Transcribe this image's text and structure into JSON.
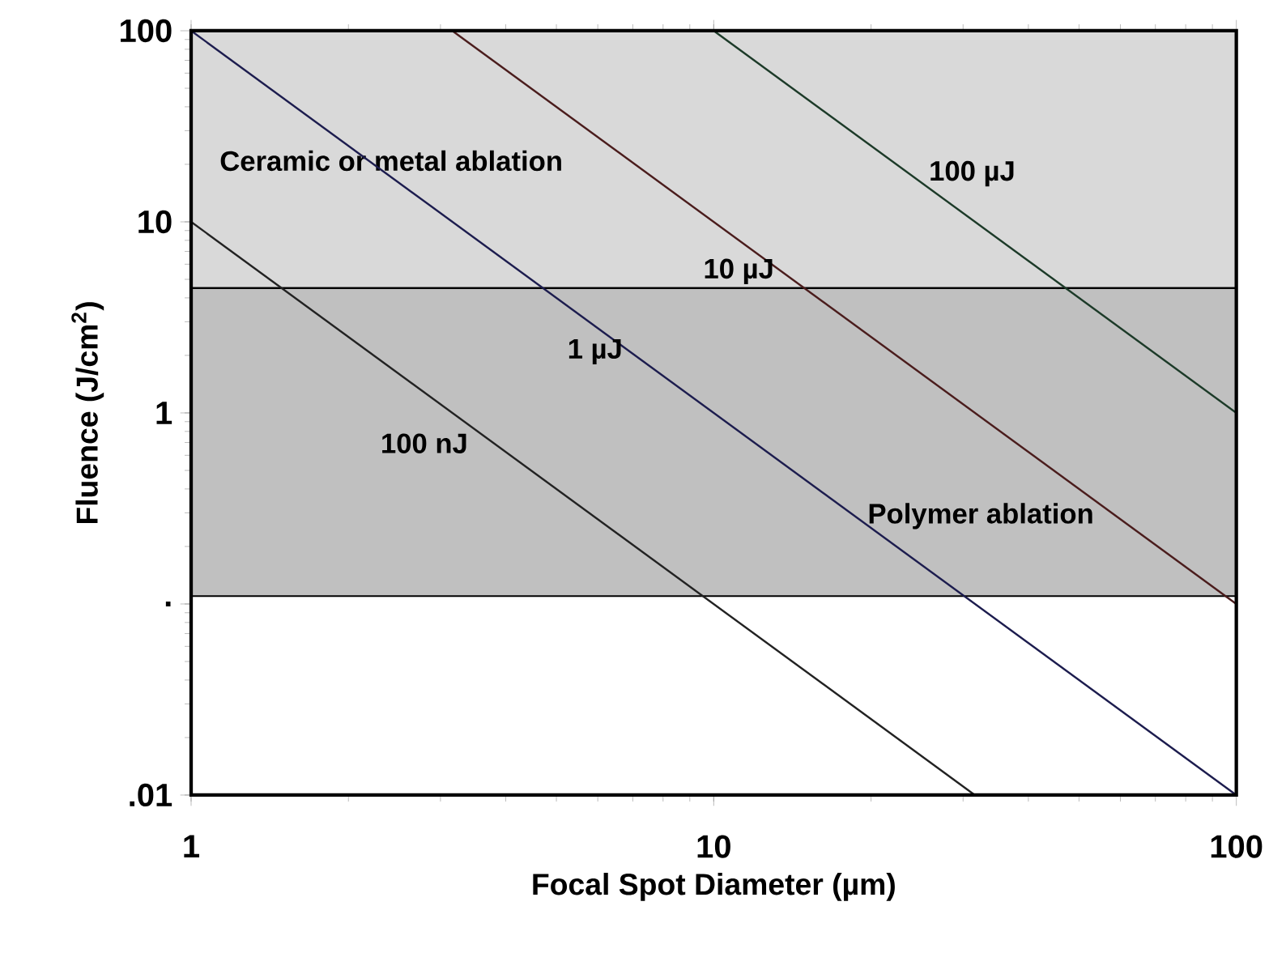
{
  "chart_data": {
    "type": "line",
    "xlabel": "Focal Spot Diameter (µm)",
    "ylabel": "Fluence (J/cm$^{2}$)",
    "log": "xy",
    "xlim": [
      1,
      100
    ],
    "ylim": [
      0.01,
      100
    ],
    "xticks": [
      1,
      10,
      100
    ],
    "yticks": [
      {
        "value": 0.01,
        "label": ".01"
      },
      {
        "value": 0.1,
        "label": "."
      },
      1,
      10,
      100
    ],
    "bands": [
      {
        "axis": "y",
        "from": 4.5,
        "to": 100,
        "label": "Ceramic or metal ablation",
        "color": "#d9d9d9"
      },
      {
        "axis": "y",
        "from": 0.11,
        "to": 4.5,
        "label": "Polymer ablation",
        "color": "#c0c0c0"
      }
    ],
    "series": [
      {
        "name": "100 nJ",
        "color": "#222222",
        "x": [
          1,
          31.6
        ],
        "values": [
          10,
          0.01
        ]
      },
      {
        "name": "1 µJ",
        "color": "#1c1c4e",
        "x": [
          1,
          100
        ],
        "values": [
          100,
          0.01
        ]
      },
      {
        "name": "10 µJ",
        "color": "#4a1c1c",
        "x": [
          3.16,
          100
        ],
        "values": [
          100,
          0.1
        ]
      },
      {
        "name": "100 µJ",
        "color": "#1c3a28",
        "x": [
          10,
          100
        ],
        "values": [
          100,
          1
        ]
      }
    ],
    "grid": false,
    "marker": "none",
    "line_style": "solid"
  }
}
